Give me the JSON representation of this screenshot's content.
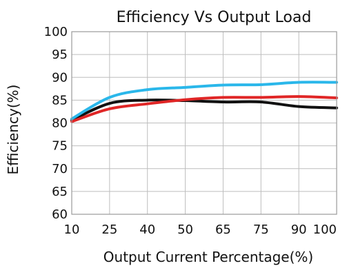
{
  "chart_data": {
    "type": "line",
    "title": "Efficiency Vs Output Load",
    "xlabel": "Output Current Percentage(%)",
    "ylabel": "Efficiency(%)",
    "x": [
      10,
      25,
      40,
      50,
      65,
      75,
      90,
      100
    ],
    "xlim": [
      10,
      100
    ],
    "ylim": [
      60,
      100
    ],
    "yticks": [
      60,
      65,
      70,
      75,
      80,
      85,
      90,
      95,
      100
    ],
    "grid": true,
    "legend": "none",
    "series": [
      {
        "color": "#111111",
        "values": [
          80.6,
          84.3,
          85.0,
          84.9,
          84.6,
          84.6,
          83.6,
          83.3
        ]
      },
      {
        "color": "#e02626",
        "values": [
          80.3,
          83.1,
          84.2,
          85.1,
          85.6,
          85.6,
          85.8,
          85.5
        ]
      },
      {
        "color": "#2ab7ea",
        "values": [
          80.9,
          85.6,
          87.3,
          87.8,
          88.3,
          88.4,
          88.9,
          88.9
        ]
      }
    ]
  }
}
